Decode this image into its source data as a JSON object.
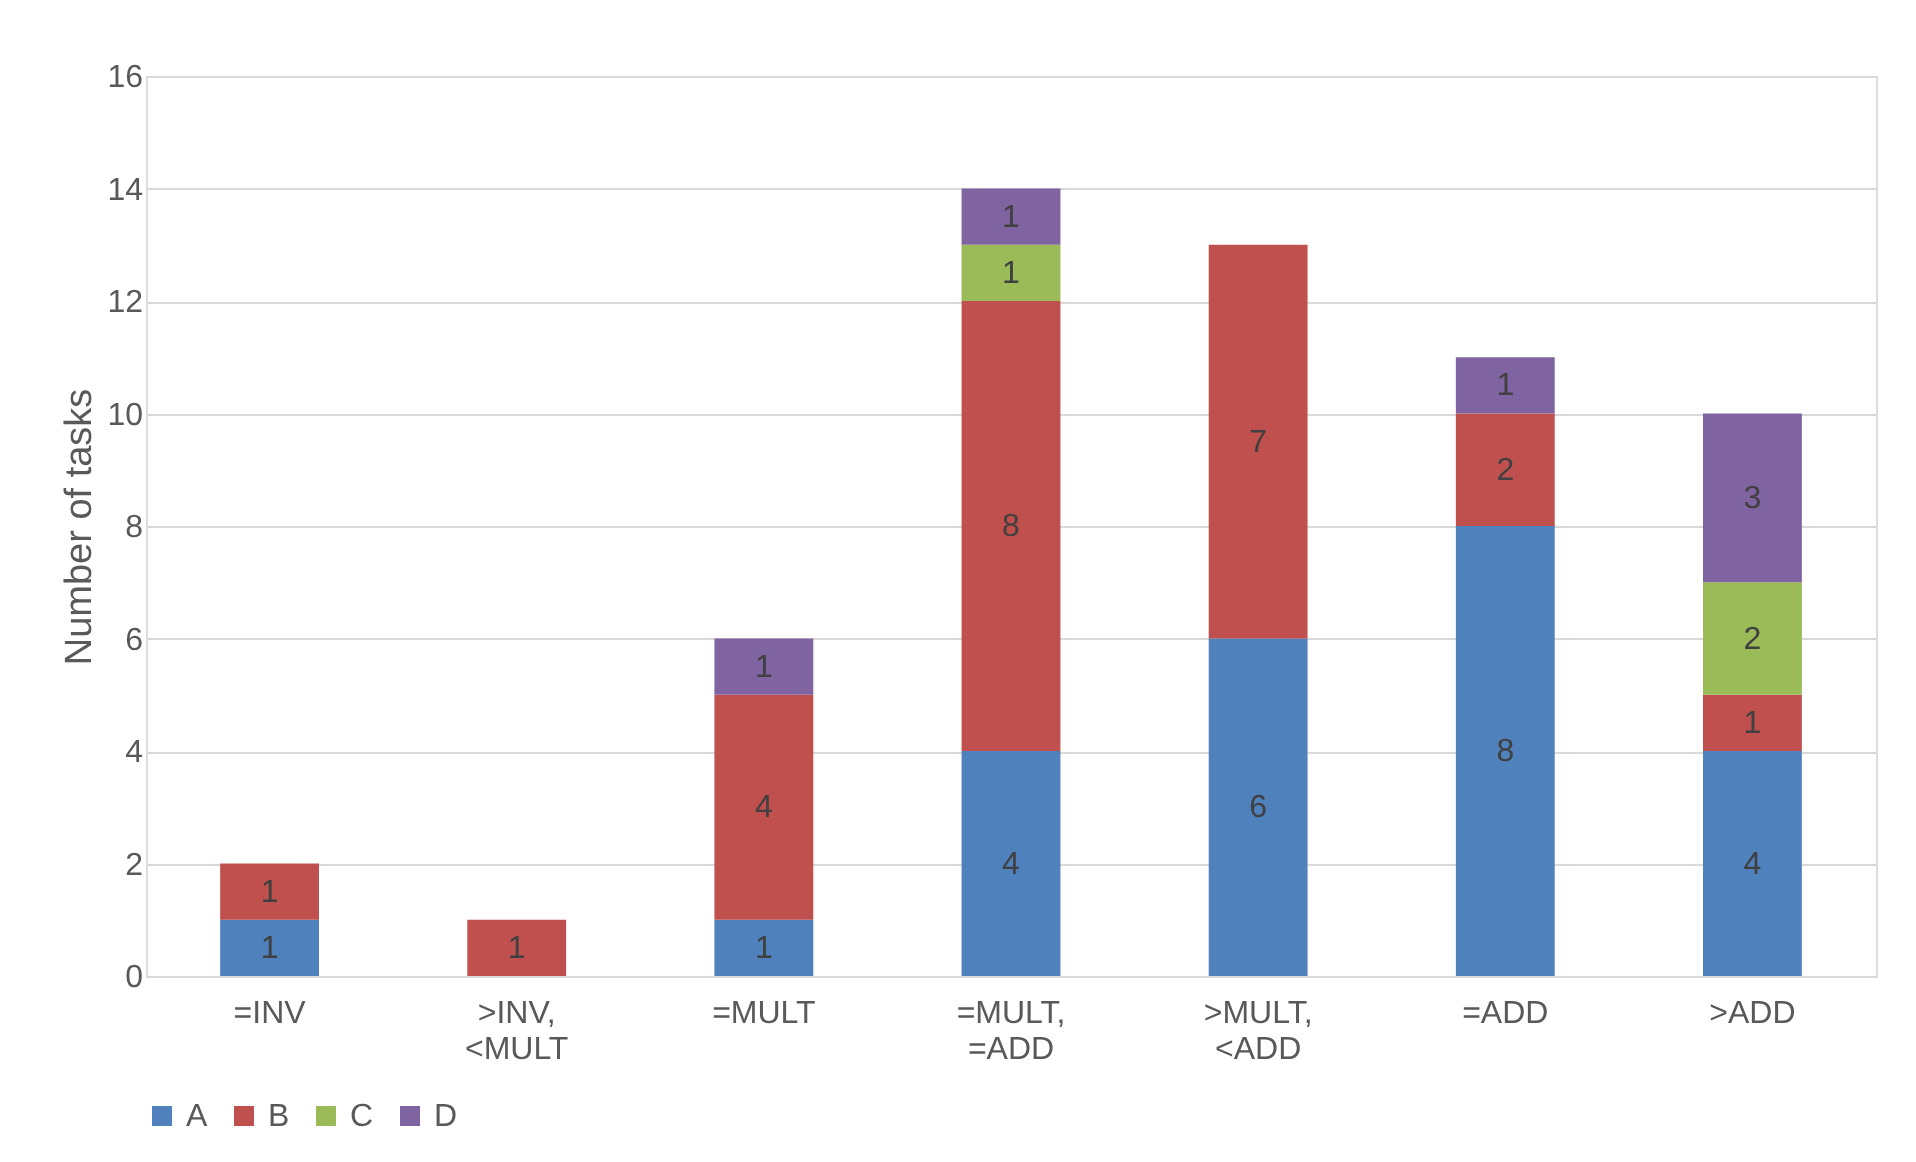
{
  "chart_data": {
    "type": "bar",
    "stacked": true,
    "ylabel": "Number of tasks",
    "categories": [
      "=INV",
      ">INV,\n<MULT",
      "=MULT",
      "=MULT,\n=ADD",
      ">MULT,\n<ADD",
      "=ADD",
      ">ADD"
    ],
    "series": [
      {
        "name": "A",
        "color": "#4f81bd",
        "values": [
          1,
          null,
          1,
          4,
          6,
          8,
          4
        ]
      },
      {
        "name": "B",
        "color": "#c0504d",
        "values": [
          1,
          1,
          4,
          8,
          7,
          2,
          1
        ]
      },
      {
        "name": "C",
        "color": "#9bbb59",
        "values": [
          null,
          null,
          null,
          1,
          null,
          null,
          2
        ]
      },
      {
        "name": "D",
        "color": "#8064a2",
        "values": [
          null,
          null,
          1,
          1,
          null,
          1,
          3
        ]
      }
    ],
    "ylim": [
      0,
      16
    ],
    "yticks": [
      0,
      2,
      4,
      6,
      8,
      10,
      12,
      14,
      16
    ],
    "grid": "y",
    "legend": "bottom",
    "data_labels": true
  }
}
